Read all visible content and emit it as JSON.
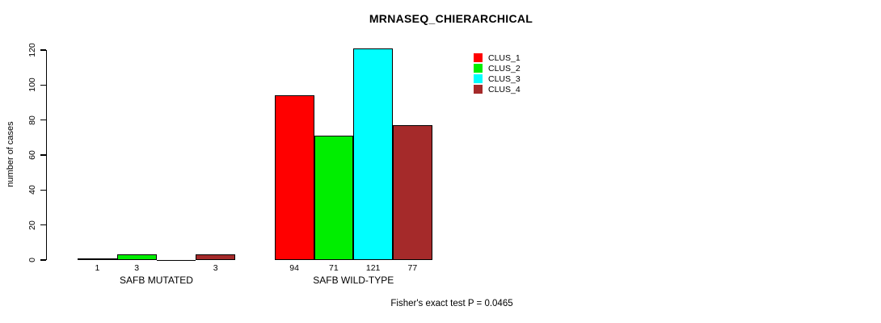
{
  "title": "MRNASEQ_CHIERARCHICAL",
  "ylabel": "number of cases",
  "caption": "Fisher's exact test P = 0.0465",
  "colors": {
    "background": "#ffffff",
    "axis": "#000000",
    "bar_border": "#000000"
  },
  "chart_data": {
    "type": "bar",
    "title": "MRNASEQ_CHIERARCHICAL",
    "xlabel": "",
    "ylabel": "number of cases",
    "ylim": [
      0,
      120
    ],
    "yticks": [
      0,
      20,
      40,
      60,
      80,
      100,
      120
    ],
    "grid": false,
    "legend_position": "top-right",
    "categories": [
      "SAFB MUTATED",
      "SAFB WILD-TYPE"
    ],
    "series": [
      {
        "name": "CLUS_1",
        "color": "#ff0000",
        "values": [
          1,
          94
        ]
      },
      {
        "name": "CLUS_2",
        "color": "#00ee00",
        "values": [
          3,
          71
        ]
      },
      {
        "name": "CLUS_3",
        "color": "#00ffff",
        "values": [
          0,
          121
        ]
      },
      {
        "name": "CLUS_4",
        "color": "#a52a2a",
        "values": [
          3,
          77
        ]
      }
    ],
    "bar_labels": [
      [
        "1",
        "3",
        "",
        "3"
      ],
      [
        "94",
        "71",
        "121",
        "77"
      ]
    ],
    "annotation": "Fisher's exact test P = 0.0465"
  }
}
